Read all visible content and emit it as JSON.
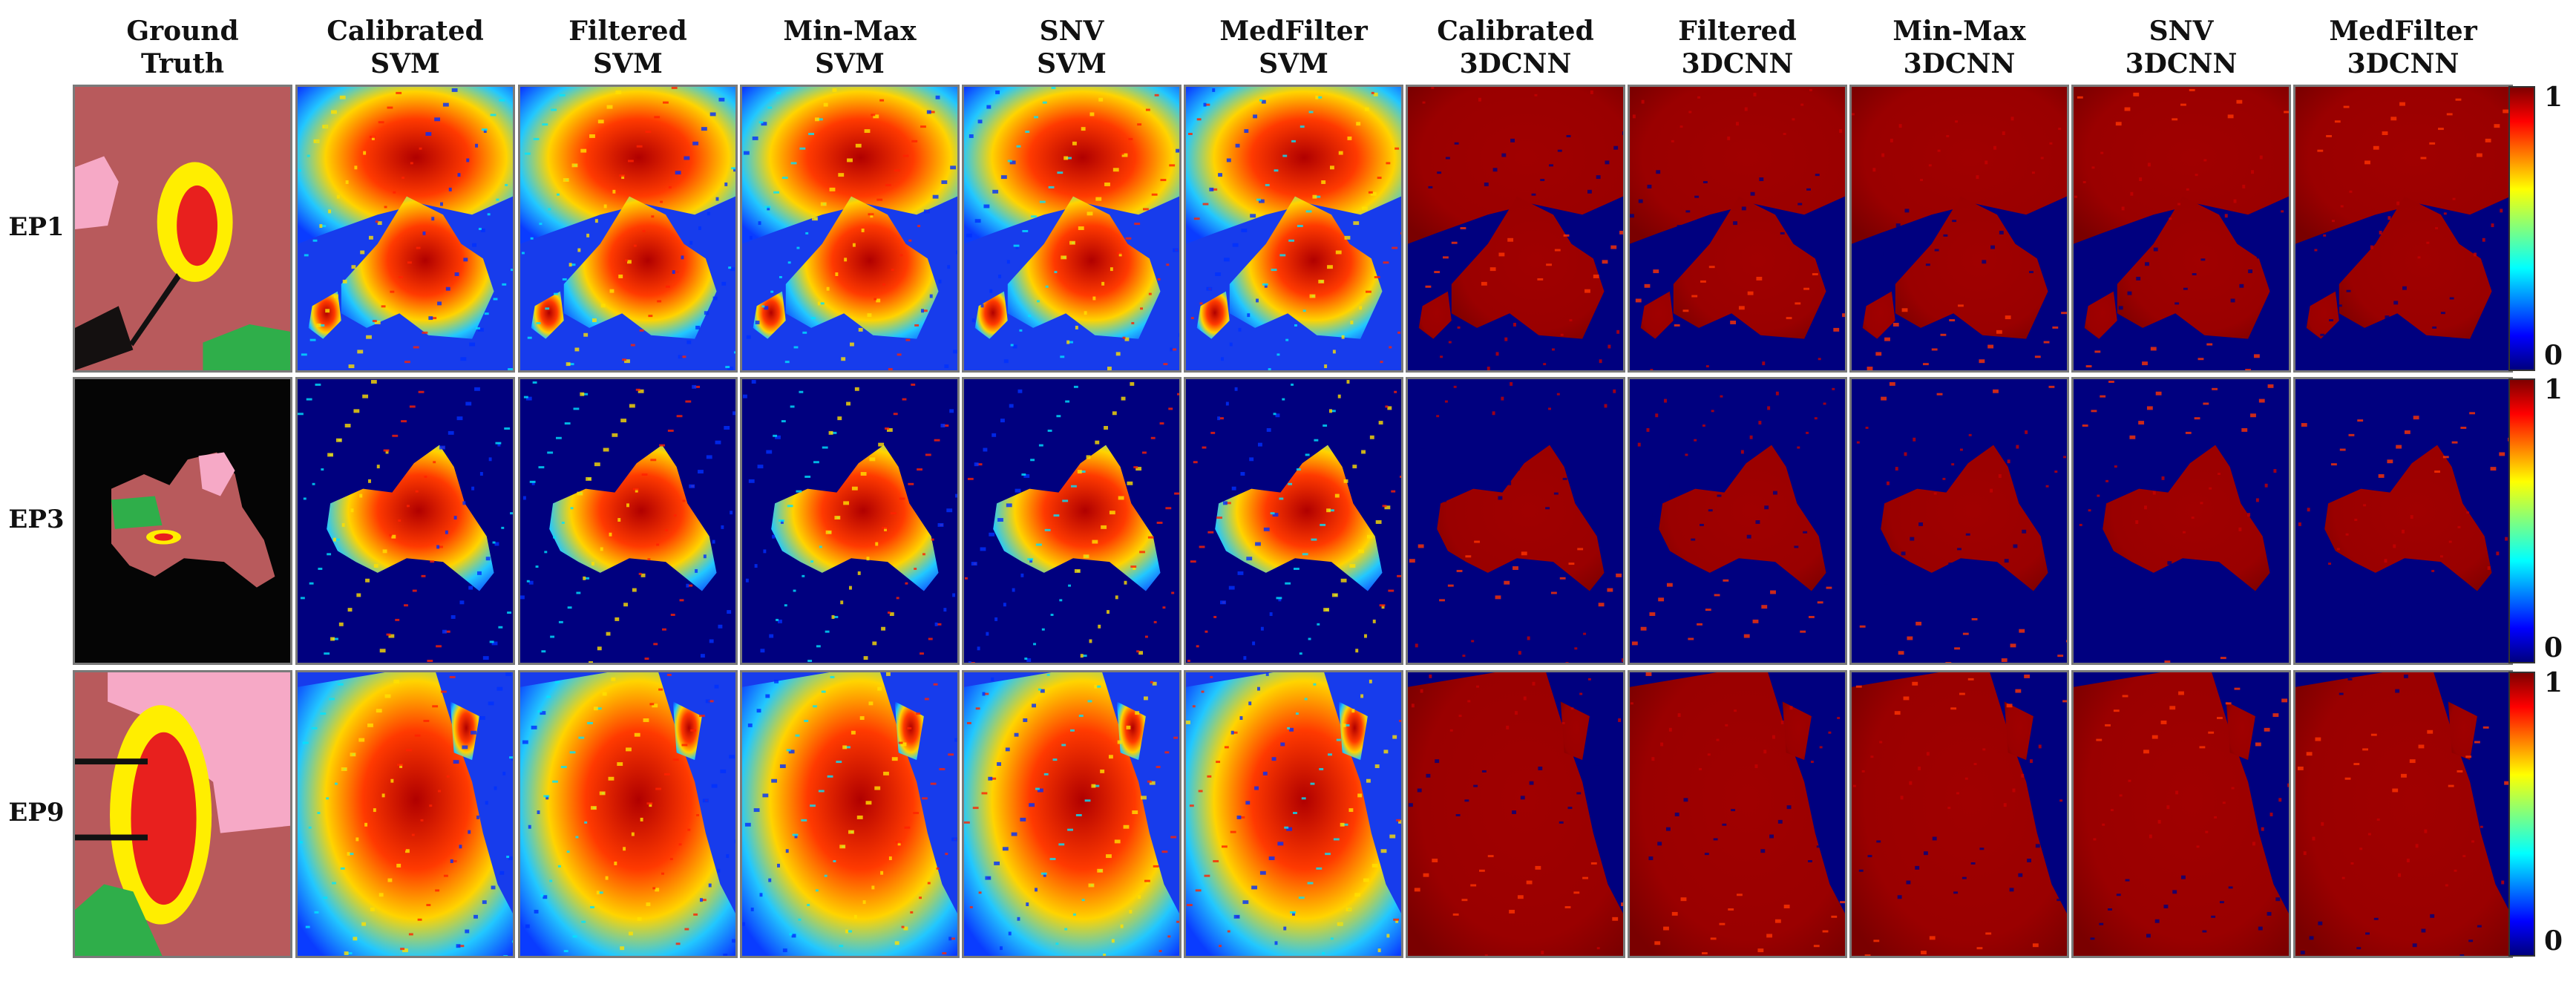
{
  "columns": [
    {
      "line1": "Ground",
      "line2": "Truth",
      "kind": "gt"
    },
    {
      "line1": "Calibrated",
      "line2": "SVM",
      "kind": "svm"
    },
    {
      "line1": "Filtered",
      "line2": "SVM",
      "kind": "svm"
    },
    {
      "line1": "Min-Max",
      "line2": "SVM",
      "kind": "svm"
    },
    {
      "line1": "SNV",
      "line2": "SVM",
      "kind": "svm"
    },
    {
      "line1": "MedFilter",
      "line2": "SVM",
      "kind": "svm"
    },
    {
      "line1": "Calibrated",
      "line2": "3DCNN",
      "kind": "cnn"
    },
    {
      "line1": "Filtered",
      "line2": "3DCNN",
      "kind": "cnn"
    },
    {
      "line1": "Min-Max",
      "line2": "3DCNN",
      "kind": "cnn"
    },
    {
      "line1": "SNV",
      "line2": "3DCNN",
      "kind": "cnn"
    },
    {
      "line1": "MedFilter",
      "line2": "3DCNN",
      "kind": "cnn"
    }
  ],
  "rows": [
    {
      "label": "EP1"
    },
    {
      "label": "EP3"
    },
    {
      "label": "EP9"
    }
  ],
  "colorbar": {
    "max_label": "1",
    "min_label": "0"
  },
  "colors": {
    "jet_dark_blue": "#00007f",
    "jet_red": "#b00000",
    "tumor": "#e8201e",
    "margin": "#ffee00",
    "healthy": "#f6a9c6",
    "vessel": "#2fae4a",
    "tissue": "#b85a5c"
  }
}
